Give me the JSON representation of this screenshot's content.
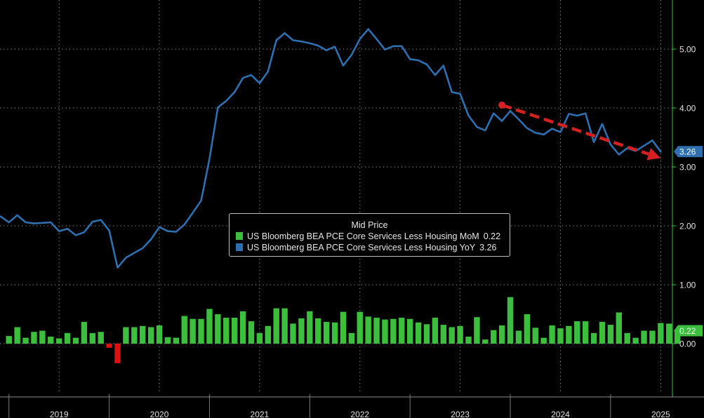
{
  "chart_data": {
    "type": "bar+line",
    "legend": {
      "title": "Mid Price",
      "entries": [
        {
          "label": "US Bloomberg BEA PCE Core Services Less Housing MoM",
          "value": "0.22",
          "color": "#3cbf3c"
        },
        {
          "label": "US Bloomberg BEA PCE Core Services Less Housing YoY",
          "value": "3.26",
          "color": "#2e6fb0"
        }
      ]
    },
    "y_axis": {
      "ticks": [
        "0.00",
        "1.00",
        "2.00",
        "3.00",
        "4.00",
        "5.00"
      ],
      "tick_values": [
        0,
        1,
        2,
        3,
        4,
        5
      ],
      "range": [
        -0.85,
        5.95
      ],
      "side": "right"
    },
    "x_axis": {
      "years": [
        "2019",
        "2020",
        "2021",
        "2022",
        "2023",
        "2024",
        "2025"
      ],
      "start": "2018-12",
      "end": "2025-10"
    },
    "last_value_labels": {
      "yoy": {
        "text": "3.26",
        "value": 3.26,
        "color": "#2e6fb0"
      },
      "mom": {
        "text": "0.22",
        "value": 0.22,
        "color": "#3cbf3c"
      }
    },
    "series": [
      {
        "name": "US Bloomberg BEA PCE Core Services Less Housing MoM",
        "kind": "bar",
        "color_positive": "#3cbf3c",
        "color_negative": "#e01010",
        "start_month": "2019-01",
        "values": [
          0.13,
          0.28,
          0.1,
          0.2,
          0.22,
          0.12,
          0.09,
          0.18,
          0.1,
          0.37,
          0.18,
          0.2,
          -0.07,
          -0.33,
          0.28,
          0.28,
          0.3,
          0.28,
          0.31,
          0.11,
          0.1,
          0.47,
          0.42,
          0.42,
          0.59,
          0.5,
          0.44,
          0.44,
          0.55,
          0.38,
          0.18,
          0.3,
          0.6,
          0.6,
          0.34,
          0.43,
          0.55,
          0.43,
          0.37,
          0.36,
          0.54,
          0.18,
          0.54,
          0.46,
          0.44,
          0.41,
          0.42,
          0.44,
          0.42,
          0.36,
          0.33,
          0.44,
          0.32,
          0.28,
          0.3,
          0.12,
          0.45,
          0.07,
          0.23,
          0.31,
          0.79,
          0.22,
          0.5,
          0.27,
          0.1,
          0.31,
          0.26,
          0.3,
          0.38,
          0.38,
          0.18,
          0.37,
          0.32,
          0.53,
          0.18,
          0.1,
          0.22,
          0.22,
          0.35,
          0.34,
          0.22
        ]
      },
      {
        "name": "US Bloomberg BEA PCE Core Services Less Housing YoY",
        "kind": "line",
        "color": "#2e6fb0",
        "start_month": "2018-12",
        "values": [
          2.16,
          2.06,
          2.18,
          2.06,
          2.04,
          2.05,
          2.06,
          1.91,
          1.95,
          1.84,
          1.89,
          2.07,
          2.1,
          1.92,
          1.29,
          1.46,
          1.54,
          1.62,
          1.77,
          1.98,
          1.91,
          1.9,
          2.02,
          2.22,
          2.43,
          3.14,
          4.01,
          4.12,
          4.27,
          4.51,
          4.56,
          4.42,
          4.62,
          5.15,
          5.27,
          5.15,
          5.13,
          5.1,
          5.06,
          4.98,
          5.04,
          4.72,
          4.9,
          5.17,
          5.34,
          5.17,
          4.99,
          5.05,
          5.05,
          4.83,
          4.81,
          4.74,
          4.56,
          4.72,
          4.27,
          4.24,
          3.87,
          3.68,
          3.62,
          3.91,
          3.78,
          3.95,
          3.81,
          3.66,
          3.58,
          3.55,
          3.65,
          3.59,
          3.9,
          3.87,
          3.91,
          3.42,
          3.73,
          3.38,
          3.21,
          3.32,
          3.27,
          3.36,
          3.45,
          3.26
        ]
      },
      {
        "name": "Trend arrow",
        "kind": "annotation-arrow",
        "color": "#d42020",
        "from": {
          "month": "2023-12",
          "value": 4.05
        },
        "to": {
          "month": "2025-07",
          "value": 3.15
        }
      }
    ],
    "grid": true
  }
}
